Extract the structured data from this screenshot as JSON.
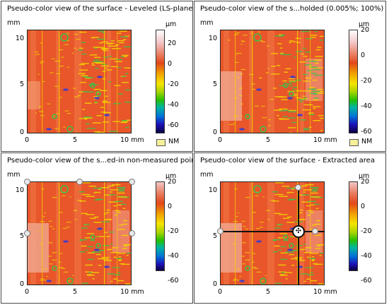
{
  "panels": [
    {
      "title": "Pseudo-color view of the surface - Leveled (LS-plane)",
      "y_unit": "mm",
      "z_unit": "µm",
      "y_ticks": [
        "10",
        "5",
        "0"
      ],
      "x_ticks": [
        "0",
        "5",
        "10 mm"
      ],
      "colorbar_ticks": [
        "20",
        "0",
        "-20",
        "-40",
        "-60"
      ],
      "legend_label": "NM"
    },
    {
      "title": "Pseudo-color view of the s...holded (0.005%; 100%)",
      "y_unit": "mm",
      "z_unit": "µm",
      "y_ticks": [
        "10",
        "5",
        "0"
      ],
      "x_ticks": [
        "0",
        "5",
        "10 mm"
      ],
      "colorbar_ticks": [
        "20",
        "0",
        "-20",
        "-40",
        "-60"
      ],
      "legend_label": "NM"
    },
    {
      "title": "Pseudo-color view of the s...ed-in non-measured points",
      "y_unit": "mm",
      "z_unit": "µm",
      "y_ticks": [
        "10",
        "5",
        "0"
      ],
      "x_ticks": [
        "0",
        "5",
        "10 mm"
      ],
      "colorbar_ticks": [
        "20",
        "0",
        "-20",
        "-40",
        "-60"
      ]
    },
    {
      "title": "Pseudo-color view of the surface - Extracted area",
      "y_unit": "mm",
      "z_unit": "µm",
      "y_ticks": [
        "10",
        "5",
        "0"
      ],
      "x_ticks": [
        "0",
        "5",
        "10 mm"
      ],
      "colorbar_ticks": [
        "20",
        "0",
        "-20",
        "-40",
        "-60"
      ]
    }
  ],
  "colors": {
    "base_orange": "#e8562a",
    "light_band": "#f0a890",
    "yellow_stripe": "#f3d400",
    "green_stripe": "#3cc24a",
    "blue_spot": "#3a3ad0",
    "nm_fill": "#f6f09a"
  }
}
